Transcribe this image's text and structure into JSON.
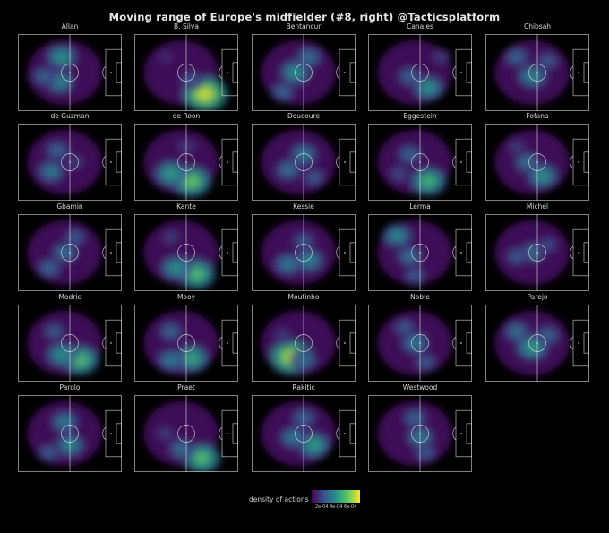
{
  "title": "Moving range of Europe's midfielder (#8, right) @Tacticsplatform",
  "chart_data": {
    "type": "heatmap",
    "title": "Moving range of Europe's midfielder (#8, right) @Tacticsplatform",
    "colorbar_label": "density of actions",
    "colorbar_ticks": [
      "2e-04",
      "4e-04",
      "6e-04"
    ],
    "colormap": "viridis",
    "colormap_stops": [
      "#440154",
      "#3b528b",
      "#21918c",
      "#5ec962",
      "#fde725"
    ],
    "players": [
      {
        "name": "Allan",
        "peaks": [
          [
            0.42,
            0.3,
            0.55
          ],
          [
            0.4,
            0.62,
            0.5
          ],
          [
            0.25,
            0.55,
            0.35
          ]
        ]
      },
      {
        "name": "B. Silva",
        "peaks": [
          [
            0.68,
            0.78,
            1.0
          ],
          [
            0.55,
            0.6,
            0.3
          ],
          [
            0.3,
            0.3,
            0.15
          ]
        ]
      },
      {
        "name": "Bentancur",
        "peaks": [
          [
            0.42,
            0.5,
            0.55
          ],
          [
            0.55,
            0.3,
            0.4
          ],
          [
            0.3,
            0.75,
            0.35
          ]
        ]
      },
      {
        "name": "Canales",
        "peaks": [
          [
            0.58,
            0.7,
            0.55
          ],
          [
            0.4,
            0.55,
            0.35
          ],
          [
            0.7,
            0.3,
            0.2
          ]
        ]
      },
      {
        "name": "Chibsah",
        "peaks": [
          [
            0.45,
            0.55,
            0.5
          ],
          [
            0.3,
            0.3,
            0.35
          ],
          [
            0.6,
            0.35,
            0.3
          ]
        ]
      },
      {
        "name": "de Guzman",
        "peaks": [
          [
            0.32,
            0.62,
            0.45
          ],
          [
            0.38,
            0.35,
            0.35
          ],
          [
            0.55,
            0.5,
            0.2
          ]
        ]
      },
      {
        "name": "de Roon",
        "peaks": [
          [
            0.55,
            0.75,
            0.8
          ],
          [
            0.35,
            0.65,
            0.6
          ],
          [
            0.5,
            0.3,
            0.2
          ]
        ]
      },
      {
        "name": "Doucoure",
        "peaks": [
          [
            0.5,
            0.4,
            0.45
          ],
          [
            0.35,
            0.6,
            0.4
          ],
          [
            0.6,
            0.7,
            0.3
          ]
        ]
      },
      {
        "name": "Eggestein",
        "peaks": [
          [
            0.58,
            0.75,
            0.7
          ],
          [
            0.4,
            0.4,
            0.35
          ],
          [
            0.3,
            0.65,
            0.25
          ]
        ]
      },
      {
        "name": "Fofana",
        "peaks": [
          [
            0.55,
            0.68,
            0.55
          ],
          [
            0.4,
            0.5,
            0.4
          ],
          [
            0.3,
            0.3,
            0.2
          ]
        ]
      },
      {
        "name": "Gbamin",
        "peaks": [
          [
            0.45,
            0.5,
            0.4
          ],
          [
            0.3,
            0.7,
            0.35
          ],
          [
            0.55,
            0.3,
            0.3
          ]
        ]
      },
      {
        "name": "Kante",
        "peaks": [
          [
            0.6,
            0.78,
            0.75
          ],
          [
            0.4,
            0.7,
            0.55
          ],
          [
            0.35,
            0.3,
            0.2
          ]
        ]
      },
      {
        "name": "Kessie",
        "peaks": [
          [
            0.55,
            0.6,
            0.5
          ],
          [
            0.35,
            0.65,
            0.45
          ],
          [
            0.5,
            0.35,
            0.3
          ]
        ]
      },
      {
        "name": "Lerma",
        "peaks": [
          [
            0.28,
            0.28,
            0.5
          ],
          [
            0.4,
            0.55,
            0.4
          ],
          [
            0.45,
            0.8,
            0.3
          ]
        ]
      },
      {
        "name": "Michel",
        "peaks": [
          [
            0.45,
            0.5,
            0.4
          ],
          [
            0.3,
            0.55,
            0.3
          ],
          [
            0.6,
            0.4,
            0.25
          ]
        ]
      },
      {
        "name": "Modric",
        "peaks": [
          [
            0.6,
            0.72,
            0.75
          ],
          [
            0.42,
            0.65,
            0.55
          ],
          [
            0.35,
            0.35,
            0.3
          ]
        ]
      },
      {
        "name": "Mooy",
        "peaks": [
          [
            0.55,
            0.7,
            0.65
          ],
          [
            0.35,
            0.72,
            0.45
          ],
          [
            0.35,
            0.35,
            0.35
          ]
        ]
      },
      {
        "name": "Moutinho",
        "peaks": [
          [
            0.38,
            0.68,
            0.95
          ],
          [
            0.5,
            0.72,
            0.4
          ],
          [
            0.3,
            0.4,
            0.2
          ]
        ]
      },
      {
        "name": "Noble",
        "peaks": [
          [
            0.45,
            0.5,
            0.45
          ],
          [
            0.35,
            0.3,
            0.3
          ],
          [
            0.55,
            0.75,
            0.3
          ]
        ]
      },
      {
        "name": "Parejo",
        "peaks": [
          [
            0.45,
            0.55,
            0.6
          ],
          [
            0.3,
            0.35,
            0.4
          ],
          [
            0.6,
            0.4,
            0.35
          ]
        ]
      },
      {
        "name": "Parolo",
        "peaks": [
          [
            0.5,
            0.65,
            0.5
          ],
          [
            0.45,
            0.35,
            0.45
          ],
          [
            0.3,
            0.75,
            0.3
          ]
        ]
      },
      {
        "name": "Praet",
        "peaks": [
          [
            0.65,
            0.82,
            0.75
          ],
          [
            0.45,
            0.7,
            0.4
          ],
          [
            0.3,
            0.5,
            0.2
          ]
        ]
      },
      {
        "name": "Rakitic",
        "peaks": [
          [
            0.6,
            0.65,
            0.6
          ],
          [
            0.4,
            0.55,
            0.45
          ],
          [
            0.5,
            0.3,
            0.35
          ]
        ]
      },
      {
        "name": "Westwood",
        "peaks": [
          [
            0.5,
            0.55,
            0.45
          ],
          [
            0.45,
            0.3,
            0.35
          ],
          [
            0.55,
            0.75,
            0.3
          ]
        ]
      }
    ]
  }
}
